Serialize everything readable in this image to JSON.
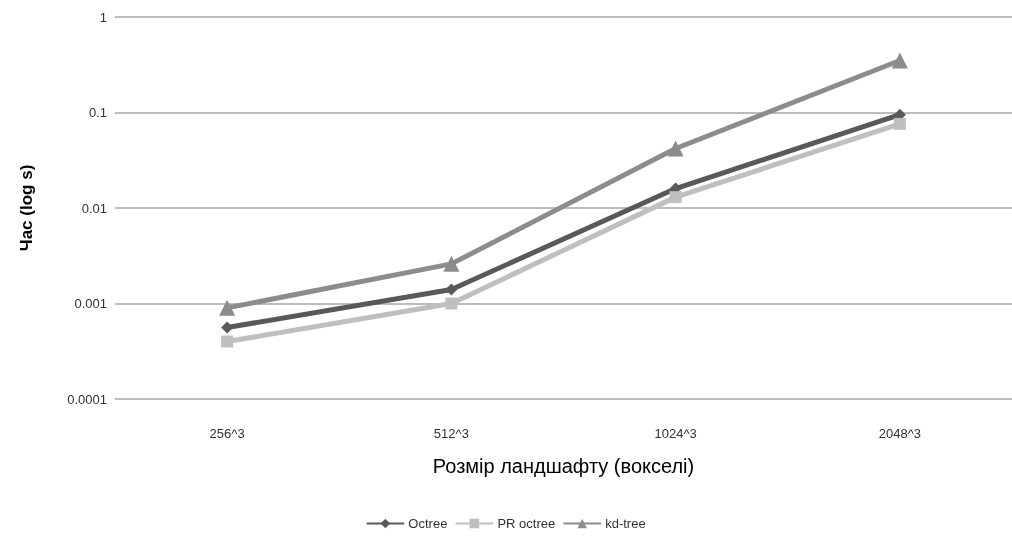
{
  "chart_data": {
    "type": "line",
    "xlabel": "Розмір ландшафту (вокселі)",
    "ylabel": "Час (log s)",
    "categories": [
      "256^3",
      "512^3",
      "1024^3",
      "2048^3"
    ],
    "series": [
      {
        "name": "Octree",
        "color": "#595959",
        "marker": "diamond",
        "values": [
          0.00056,
          0.0014,
          0.016,
          0.095
        ]
      },
      {
        "name": "PR octree",
        "color": "#bfbfbf",
        "marker": "square",
        "values": [
          0.0004,
          0.001,
          0.013,
          0.076
        ]
      },
      {
        "name": "kd-tree",
        "color": "#8c8c8c",
        "marker": "triangle",
        "values": [
          0.0009,
          0.0026,
          0.042,
          0.35
        ]
      }
    ],
    "log": "y",
    "ylim": [
      0.0001,
      1
    ],
    "yticks": [
      0.0001,
      0.001,
      0.01,
      0.1,
      1
    ],
    "grid": "y",
    "legend": "bottom",
    "line_style": "solid"
  }
}
